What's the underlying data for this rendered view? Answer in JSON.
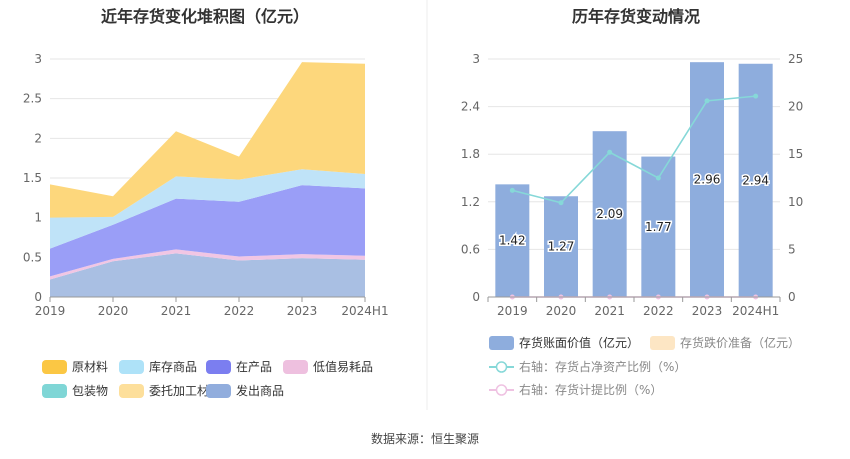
{
  "source_text": "数据来源：恒生聚源",
  "chart_data": [
    {
      "type": "area",
      "stacked": true,
      "title": "近年存货变化堆积图（亿元）",
      "xlabel": "",
      "ylabel": "",
      "categories": [
        "2019",
        "2020",
        "2021",
        "2022",
        "2023",
        "2024H1"
      ],
      "ylim": [
        0,
        3
      ],
      "yticks": [
        "0",
        "0.5",
        "1",
        "1.5",
        "2",
        "2.5",
        "3"
      ],
      "grid": true,
      "legend_position": "bottom",
      "series": [
        {
          "name": "发出商品",
          "color": "#a9bfe3",
          "values": [
            0.22,
            0.45,
            0.55,
            0.46,
            0.49,
            0.47
          ]
        },
        {
          "name": "低值易耗品",
          "color": "#f1c6e4",
          "values": [
            0.04,
            0.03,
            0.05,
            0.05,
            0.05,
            0.05
          ]
        },
        {
          "name": "在产品",
          "color": "#9a9ef7",
          "values": [
            0.35,
            0.43,
            0.64,
            0.69,
            0.87,
            0.85
          ]
        },
        {
          "name": "库存商品",
          "color": "#bfe3f8",
          "values": [
            0.39,
            0.1,
            0.28,
            0.28,
            0.2,
            0.18
          ]
        },
        {
          "name": "原材料",
          "color": "#fdd77c",
          "values": [
            0.42,
            0.26,
            0.57,
            0.29,
            1.35,
            1.39
          ]
        }
      ],
      "legend": [
        {
          "name": "原材料",
          "color": "#fbc744"
        },
        {
          "name": "库存商品",
          "color": "#aee2f8"
        },
        {
          "name": "在产品",
          "color": "#7b7ef0"
        },
        {
          "name": "低值易耗品",
          "color": "#eec0df"
        },
        {
          "name": "包装物",
          "color": "#7fd6d6"
        },
        {
          "name": "委托加工材料",
          "color": "#fddf9b"
        },
        {
          "name": "发出商品",
          "color": "#91addd"
        }
      ]
    },
    {
      "type": "bar",
      "title": "历年存货变动情况",
      "categories": [
        "2019",
        "2020",
        "2021",
        "2022",
        "2023",
        "2024H1"
      ],
      "ylim": [
        0,
        3
      ],
      "yticks": [
        "0",
        "0.6",
        "1.2",
        "1.8",
        "2.4",
        "3"
      ],
      "y2lim": [
        0,
        25
      ],
      "y2ticks": [
        "0",
        "5",
        "10",
        "15",
        "20",
        "25"
      ],
      "grid": true,
      "legend_position": "bottom",
      "series": [
        {
          "name": "存货账面价值（亿元）",
          "kind": "bar",
          "axis": "left",
          "color": "#8eaddd",
          "values": [
            1.42,
            1.27,
            2.09,
            1.77,
            2.96,
            2.94
          ],
          "labels": [
            "1.42",
            "1.27",
            "2.09",
            "1.77",
            "2.96",
            "2.94"
          ]
        },
        {
          "name": "存货跌价准备（亿元）",
          "kind": "bar",
          "axis": "left",
          "color": "#fde6c4",
          "values": [
            0,
            0,
            0,
            0,
            0,
            0
          ]
        },
        {
          "name": "右轴：存货占净资产比例（%）",
          "kind": "line",
          "axis": "right",
          "color": "#86d8d8",
          "values": [
            11.2,
            9.9,
            15.2,
            12.5,
            20.6,
            21.1
          ]
        },
        {
          "name": "右轴：存货计提比例（%）",
          "kind": "line",
          "axis": "right",
          "color": "#efc2e2",
          "values": [
            0,
            0,
            0,
            0,
            0,
            0
          ]
        }
      ]
    }
  ]
}
